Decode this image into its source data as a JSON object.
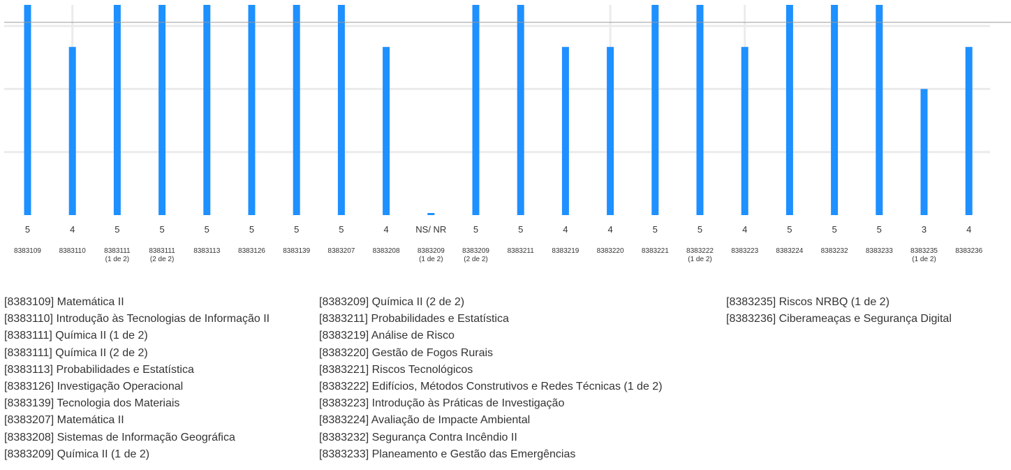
{
  "colors": {
    "bar": "#1e90ff",
    "grid": "#ebebeb",
    "axis_line": "#999999",
    "text": "#333333"
  },
  "chart_data": {
    "type": "bar",
    "grid": true,
    "legend_placement": "bottom",
    "categories": [
      {
        "code": "8383109",
        "part": ""
      },
      {
        "code": "8383110",
        "part": ""
      },
      {
        "code": "8383111",
        "part": "(1 de 2)"
      },
      {
        "code": "8383111",
        "part": "(2 de 2)"
      },
      {
        "code": "8383113",
        "part": ""
      },
      {
        "code": "8383126",
        "part": ""
      },
      {
        "code": "8383139",
        "part": ""
      },
      {
        "code": "8383207",
        "part": ""
      },
      {
        "code": "8383208",
        "part": ""
      },
      {
        "code": "8383209",
        "part": "(1 de 2)"
      },
      {
        "code": "8383209",
        "part": "(2 de 2)"
      },
      {
        "code": "8383211",
        "part": ""
      },
      {
        "code": "8383219",
        "part": ""
      },
      {
        "code": "8383220",
        "part": ""
      },
      {
        "code": "8383221",
        "part": ""
      },
      {
        "code": "8383222",
        "part": "(1 de 2)"
      },
      {
        "code": "8383223",
        "part": ""
      },
      {
        "code": "8383224",
        "part": ""
      },
      {
        "code": "8383232",
        "part": ""
      },
      {
        "code": "8383233",
        "part": ""
      },
      {
        "code": "8383235",
        "part": "(1 de 2)"
      },
      {
        "code": "8383236",
        "part": ""
      }
    ],
    "values": [
      5,
      4,
      5,
      5,
      5,
      5,
      5,
      5,
      4,
      0,
      5,
      5,
      4,
      4,
      5,
      5,
      4,
      5,
      5,
      5,
      3,
      4
    ],
    "value_labels": [
      "5",
      "4",
      "5",
      "5",
      "5",
      "5",
      "5",
      "5",
      "4",
      "NS/ NR",
      "5",
      "5",
      "4",
      "4",
      "5",
      "5",
      "4",
      "5",
      "5",
      "5",
      "3",
      "4"
    ],
    "ylim": [
      0,
      5
    ],
    "legend": {
      "columns": [
        [
          "[8383109] Matemática II",
          "[8383110] Introdução às Tecnologias de Informação II",
          "[8383111] Química II (1 de 2)",
          "[8383111] Química II (2 de 2)",
          "[8383113] Probabilidades e Estatística",
          "[8383126] Investigação Operacional",
          "[8383139] Tecnologia dos Materiais",
          "[8383207] Matemática II",
          "[8383208] Sistemas de Informação Geográfica",
          "[8383209] Química II (1 de 2)"
        ],
        [
          "[8383209] Química II (2 de 2)",
          "[8383211] Probabilidades e Estatística",
          "[8383219] Análise de Risco",
          "[8383220] Gestão de Fogos Rurais",
          "[8383221] Riscos Tecnológicos",
          "[8383222] Edifícios, Métodos Construtivos e Redes Técnicas (1 de 2)",
          "[8383223] Introdução às Práticas de Investigação",
          "[8383224] Avaliação de Impacte Ambiental",
          "[8383232] Segurança Contra Incêndio II",
          "[8383233] Planeamento e Gestão das Emergências"
        ],
        [
          "[8383235] Riscos NRBQ (1 de 2)",
          "[8383236] Ciberameaças e Segurança Digital"
        ]
      ]
    }
  }
}
